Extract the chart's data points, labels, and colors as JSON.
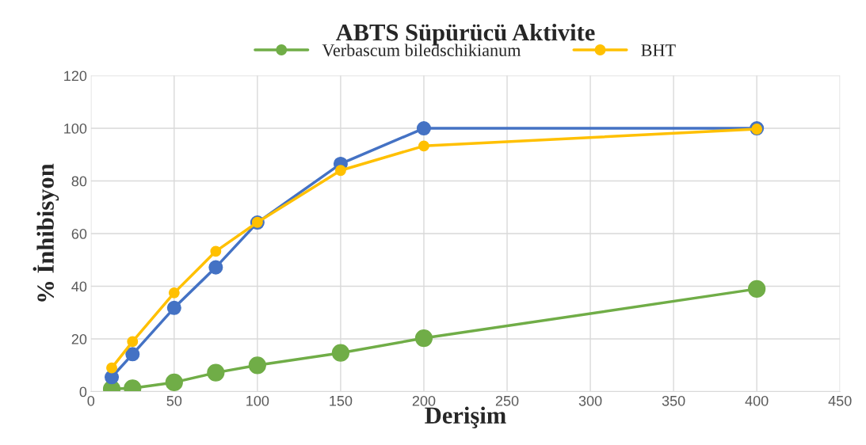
{
  "chart_data": {
    "type": "line",
    "title": "ABTS Süpürücü Aktivite",
    "xlabel": "Derişim",
    "ylabel": "% İnhibisyon",
    "x": [
      12.5,
      25,
      50,
      75,
      100,
      150,
      200,
      400
    ],
    "series": [
      {
        "name": "Verbascum biledschikianum",
        "color": "#70ad47",
        "values": [
          1,
          1.3,
          3.5,
          7.2,
          10,
          14.7,
          20.3,
          39
        ]
      },
      {
        "color": "#4472c4",
        "values": [
          5.5,
          14.2,
          31.8,
          47.2,
          64.2,
          86.5,
          100,
          100
        ]
      },
      {
        "name": "BHT",
        "color": "#ffc000",
        "values": [
          9,
          19,
          37.5,
          53.3,
          64.3,
          84,
          93.3,
          99.7
        ]
      }
    ],
    "xlim": [
      0,
      450
    ],
    "xticks": [
      0,
      50,
      100,
      150,
      200,
      250,
      300,
      350,
      400,
      450
    ],
    "ylim": [
      0,
      120
    ],
    "yticks": [
      0,
      20,
      40,
      60,
      80,
      100,
      120
    ],
    "grid": true,
    "legend": "top",
    "marker": "circle",
    "line_style": "solid"
  }
}
